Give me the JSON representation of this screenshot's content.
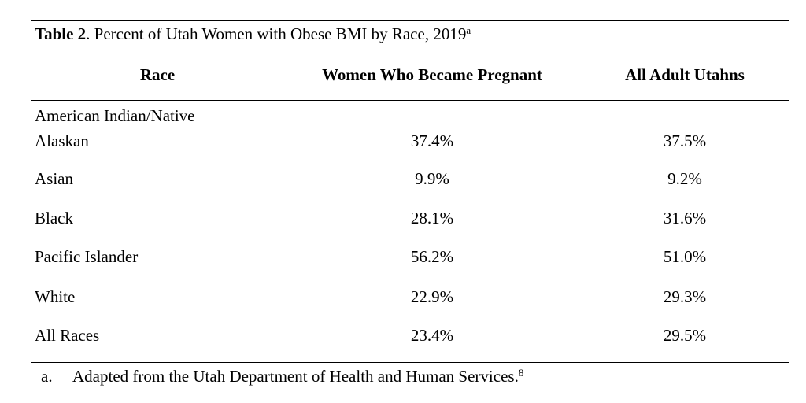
{
  "table": {
    "caption_label": "Table 2",
    "caption_text": ". Percent of Utah Women with Obese BMI by Race, 2019",
    "caption_note": "a",
    "headers": {
      "race": "Race",
      "pregnant": "Women Who Became Pregnant",
      "all_adults": "All Adult Utahns"
    },
    "rows": [
      {
        "race_line1": "American Indian/Native",
        "race_line2": "Alaskan",
        "pregnant": "37.4%",
        "all_adults": "37.5%"
      },
      {
        "race": "Asian",
        "pregnant": "9.9%",
        "all_adults": "9.2%"
      },
      {
        "race": "Black",
        "pregnant": "28.1%",
        "all_adults": "31.6%"
      },
      {
        "race": "Pacific Islander",
        "pregnant": "56.2%",
        "all_adults": "51.0%"
      },
      {
        "race": "White",
        "pregnant": "22.9%",
        "all_adults": "29.3%"
      },
      {
        "race": "All Races",
        "pregnant": "23.4%",
        "all_adults": "29.5%"
      }
    ],
    "footnote": {
      "marker": "a.",
      "text": "Adapted from the Utah Department of Health and Human Services.",
      "ref": "8"
    }
  }
}
